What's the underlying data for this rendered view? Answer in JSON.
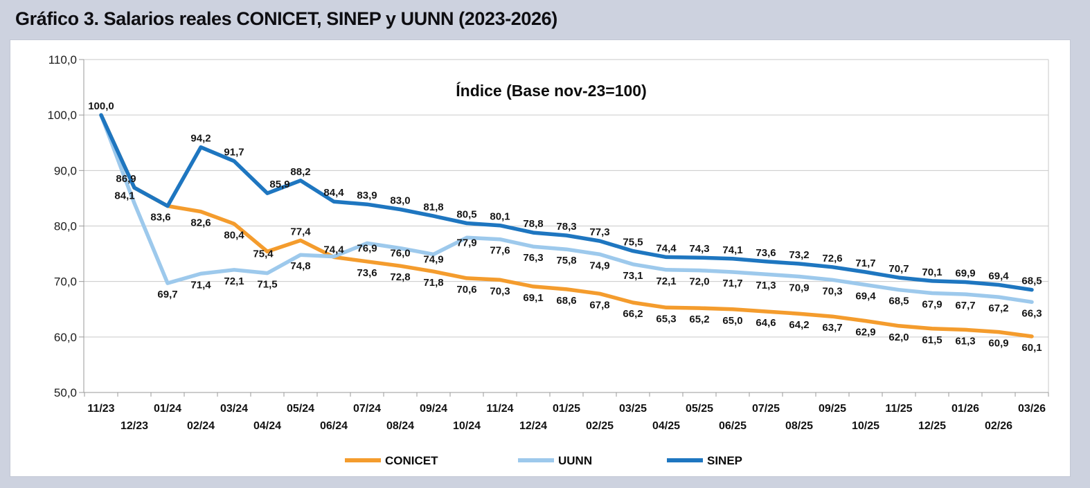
{
  "page": {
    "title": "Gráfico 3. Salarios reales CONICET, SINEP y UUNN (2023-2026)"
  },
  "colors": {
    "background": "#cdd2df",
    "chart_background": "#ffffff",
    "gridline": "#c9c9c9",
    "axis": "#9a9a9a",
    "text": "#161616",
    "conicet": "#F49C2D",
    "uunn": "#9DC9EC",
    "sinep": "#1E76C0"
  },
  "chart_data": {
    "type": "line",
    "title": "Índice (Base nov-23=100)",
    "xlabel": "",
    "ylabel": "",
    "ylim": [
      50,
      110
    ],
    "ytick_step": 10,
    "ytick_labels": [
      "110,0",
      "100,0",
      "90,0",
      "80,0",
      "70,0",
      "60,0",
      "50,0"
    ],
    "grid": "horizontal",
    "legend_position": "bottom",
    "categories": [
      "11/23",
      "12/23",
      "01/24",
      "02/24",
      "03/24",
      "04/24",
      "05/24",
      "06/24",
      "07/24",
      "08/24",
      "09/24",
      "10/24",
      "11/24",
      "12/24",
      "01/25",
      "02/25",
      "03/25",
      "04/25",
      "05/25",
      "06/25",
      "07/25",
      "08/25",
      "09/25",
      "10/25",
      "11/25",
      "12/25",
      "01/26",
      "02/26",
      "03/26"
    ],
    "series": [
      {
        "name": "CONICET",
        "color_key": "conicet",
        "values": [
          100.0,
          86.9,
          83.6,
          82.6,
          80.4,
          75.4,
          77.4,
          74.4,
          73.6,
          72.8,
          71.8,
          70.6,
          70.3,
          69.1,
          68.6,
          67.8,
          66.2,
          65.3,
          65.2,
          65.0,
          64.6,
          64.2,
          63.7,
          62.9,
          62.0,
          61.5,
          61.3,
          60.9,
          60.1
        ],
        "point_labels": [
          null,
          null,
          null,
          "82,6",
          "80,4",
          "75,4",
          "77,4",
          "74,4",
          "73,6",
          "72,8",
          "71,8",
          "70,6",
          "70,3",
          "69,1",
          "68,6",
          "67,8",
          "66,2",
          "65,3",
          "65,2",
          "65,0",
          "64,6",
          "64,2",
          "63,7",
          "62,9",
          "62,0",
          "61,5",
          "61,3",
          "60,9",
          "60,1"
        ],
        "label_side": "below",
        "label_overrides": {
          "5": {
            "dx": -6,
            "dy": 8
          },
          "6": {
            "dy": -8
          },
          "7": {
            "dy": -6
          }
        }
      },
      {
        "name": "UUNN",
        "color_key": "uunn",
        "values": [
          100.0,
          84.1,
          69.7,
          71.4,
          72.1,
          71.5,
          74.8,
          74.5,
          76.9,
          76.0,
          74.9,
          77.9,
          77.6,
          76.3,
          75.8,
          74.9,
          73.1,
          72.1,
          72.0,
          71.7,
          71.3,
          70.9,
          70.3,
          69.4,
          68.5,
          67.9,
          67.7,
          67.2,
          66.3
        ],
        "point_labels": [
          null,
          "84,1",
          "69,7",
          "71,4",
          "72,1",
          "71,5",
          "74,8",
          null,
          "76,9",
          "76,0",
          "74,9",
          "77,9",
          "77,6",
          "76,3",
          "75,8",
          "74,9",
          "73,1",
          "72,1",
          "72,0",
          "71,7",
          "71,3",
          "70,9",
          "70,3",
          "69,4",
          "68,5",
          "67,9",
          "67,7",
          "67,2",
          "66,3"
        ],
        "label_side": "below",
        "label_overrides": {
          "1": {
            "dx": -14,
            "dy": -6
          },
          "8": {
            "dy": 12
          },
          "9": {
            "dy": 12
          },
          "10": {
            "dy": 12
          },
          "11": {
            "dy": 12
          }
        }
      },
      {
        "name": "SINEP",
        "color_key": "sinep",
        "values": [
          100.0,
          86.9,
          83.6,
          94.2,
          91.7,
          85.9,
          88.2,
          84.4,
          83.9,
          83.0,
          81.8,
          80.5,
          80.1,
          78.8,
          78.3,
          77.3,
          75.5,
          74.4,
          74.3,
          74.1,
          73.6,
          73.2,
          72.6,
          71.7,
          70.7,
          70.1,
          69.9,
          69.4,
          68.5
        ],
        "point_labels": [
          "100,0",
          "86,9",
          "83,6",
          "94,2",
          "91,7",
          "85,9",
          "88,2",
          "84,4",
          "83,9",
          "83,0",
          "81,8",
          "80,5",
          "80,1",
          "78,8",
          "78,3",
          "77,3",
          "75,5",
          "74,4",
          "74,3",
          "74,1",
          "73,6",
          "73,2",
          "72,6",
          "71,7",
          "70,7",
          "70,1",
          "69,9",
          "69,4",
          "68,5"
        ],
        "label_side": "above",
        "label_overrides": {
          "1": {
            "dx": -12
          },
          "2": {
            "dx": -10,
            "dy": 21
          },
          "5": {
            "dx": 18
          }
        }
      }
    ],
    "legend": [
      "CONICET",
      "UUNN",
      "SINEP"
    ]
  }
}
